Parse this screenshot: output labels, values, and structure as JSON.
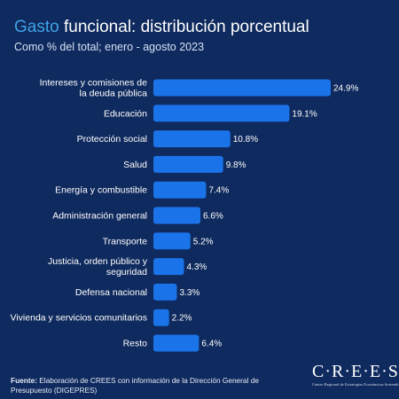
{
  "header": {
    "title_accent": "Gasto",
    "title_rest": " funcional: distribución porcentual",
    "subtitle": "Como % del total; enero - agosto 2023"
  },
  "colors": {
    "bar": "#1a73e8",
    "background": "#0f2a5e",
    "accent": "#3fa3e6"
  },
  "chart_data": {
    "type": "bar",
    "orientation": "horizontal",
    "categories": [
      [
        "Intereses y comisiones de",
        "la deuda pública"
      ],
      [
        "Educación"
      ],
      [
        "Protección social"
      ],
      [
        "Salud"
      ],
      [
        "Energía y combustible"
      ],
      [
        "Administración general"
      ],
      [
        "Transporte"
      ],
      [
        "Justicia, orden público y",
        "seguridad"
      ],
      [
        "Defensa nacional"
      ],
      [
        "Vivienda y servicios comunitarios"
      ],
      [
        "Resto"
      ]
    ],
    "values": [
      24.9,
      19.1,
      10.8,
      9.8,
      7.4,
      6.6,
      5.2,
      4.3,
      3.3,
      2.2,
      6.4
    ],
    "value_labels": [
      "24.9%",
      "19.1%",
      "10.8%",
      "9.8%",
      "7.4%",
      "6.6%",
      "5.2%",
      "4.3%",
      "3.3%",
      "2.2%",
      "6.4%"
    ],
    "xlim": [
      0,
      24.9
    ],
    "grid": false
  },
  "footer": {
    "source_label": "Fuente:",
    "source_text": " Elaboración de CREES con información de la Dirección General de Presupuesto (DIGEPRES)"
  },
  "logo": {
    "wordmark": "C·R·E·E·S",
    "tagline": "Centro Regional de Estrategias Económicas Sostenibles"
  }
}
